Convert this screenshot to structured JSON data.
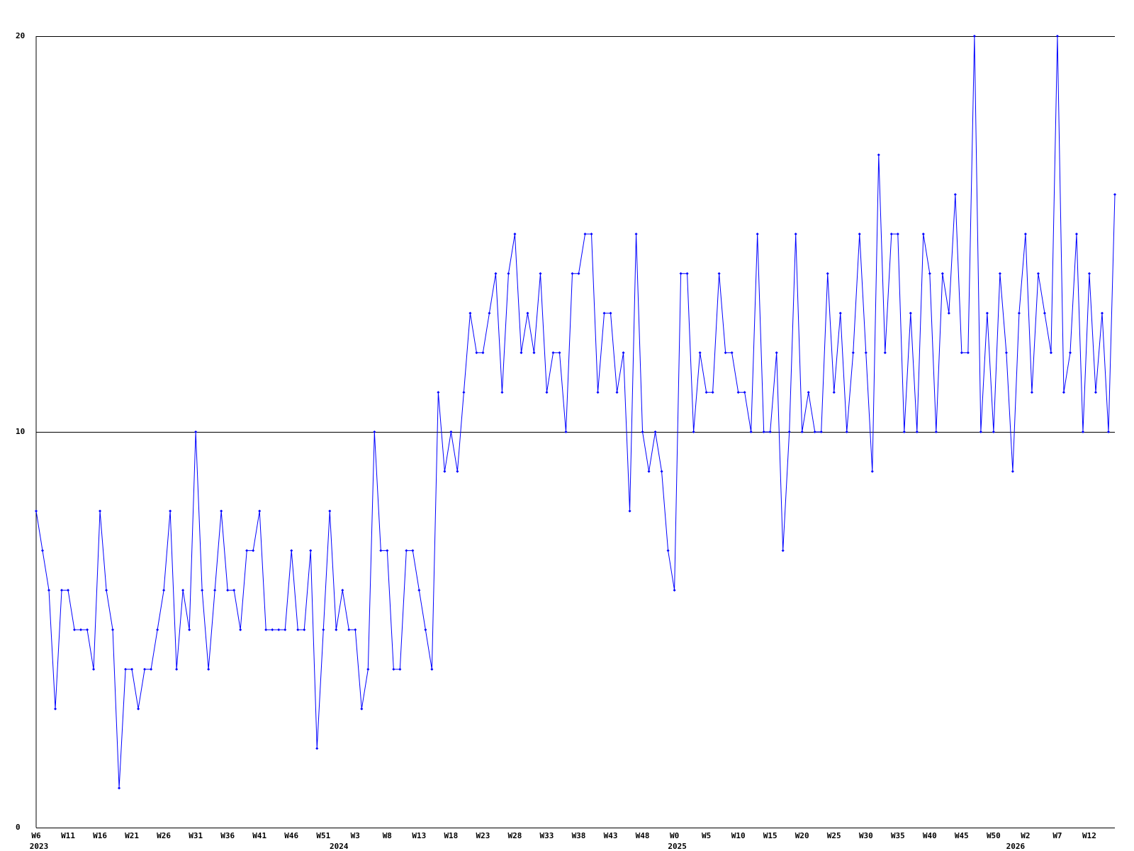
{
  "chart_data": {
    "type": "line",
    "categories": [
      "W6",
      null,
      null,
      null,
      null,
      "W11",
      null,
      null,
      null,
      null,
      "W16",
      null,
      null,
      null,
      null,
      "W21",
      null,
      null,
      null,
      null,
      "W26",
      null,
      null,
      null,
      null,
      "W31",
      null,
      null,
      null,
      null,
      "W36",
      null,
      null,
      null,
      null,
      "W41",
      null,
      null,
      null,
      null,
      "W46",
      null,
      null,
      null,
      null,
      "W51",
      null,
      null,
      null,
      null,
      "W3",
      null,
      null,
      null,
      null,
      "W8",
      null,
      null,
      null,
      null,
      "W13",
      null,
      null,
      null,
      null,
      "W18",
      null,
      null,
      null,
      null,
      "W23",
      null,
      null,
      null,
      null,
      "W28",
      null,
      null,
      null,
      null,
      "W33",
      null,
      null,
      null,
      null,
      "W38",
      null,
      null,
      null,
      null,
      "W43",
      null,
      null,
      null,
      null,
      "W48",
      null,
      null,
      null,
      null,
      "W0",
      null,
      null,
      null,
      null,
      "W5",
      null,
      null,
      null,
      null,
      "W10",
      null,
      null,
      null,
      null,
      "W15",
      null,
      null,
      null,
      null,
      "W20",
      null,
      null,
      null,
      null,
      "W25",
      null,
      null,
      null,
      null,
      "W30",
      null,
      null,
      null,
      null,
      "W35",
      null,
      null,
      null,
      null,
      "W40",
      null,
      null,
      null,
      null,
      "W45",
      null,
      null,
      null,
      null,
      "W50",
      null,
      null,
      null,
      null,
      "W2",
      null,
      null,
      null,
      null,
      "W7",
      null,
      null,
      null,
      null,
      "W12",
      null,
      null,
      null,
      null
    ],
    "years": [
      "2023",
      null,
      null,
      null,
      null,
      null,
      null,
      null,
      null,
      null,
      null,
      null,
      null,
      null,
      null,
      null,
      null,
      null,
      null,
      null,
      null,
      null,
      null,
      null,
      null,
      null,
      null,
      null,
      null,
      null,
      null,
      null,
      null,
      null,
      null,
      null,
      null,
      null,
      null,
      null,
      null,
      null,
      null,
      null,
      null,
      null,
      null,
      "2024",
      null,
      null,
      null,
      null,
      null,
      null,
      null,
      null,
      null,
      null,
      null,
      null,
      null,
      null,
      null,
      null,
      null,
      null,
      null,
      null,
      null,
      null,
      null,
      null,
      null,
      null,
      null,
      null,
      null,
      null,
      null,
      null,
      null,
      null,
      null,
      null,
      null,
      null,
      null,
      null,
      null,
      null,
      null,
      null,
      null,
      null,
      null,
      null,
      null,
      null,
      null,
      null,
      "2025",
      null,
      null,
      null,
      null,
      null,
      null,
      null,
      null,
      null,
      null,
      null,
      null,
      null,
      null,
      null,
      null,
      null,
      null,
      null,
      null,
      null,
      null,
      null,
      null,
      null,
      null,
      null,
      null,
      null,
      null,
      null,
      null,
      null,
      null,
      null,
      null,
      null,
      null,
      null,
      null,
      null,
      null,
      null,
      null,
      null,
      null,
      null,
      null,
      null,
      null,
      null,
      null,
      "2026",
      null,
      null,
      null,
      null,
      null,
      null,
      null,
      null,
      null,
      null,
      null,
      null,
      null,
      null,
      null,
      null
    ],
    "series": [
      {
        "color": "#0000ff",
        "values": [
          8,
          7,
          6,
          3,
          6,
          6,
          5,
          5,
          5,
          4,
          8,
          6,
          5,
          1,
          4,
          4,
          3,
          4,
          4,
          5,
          6,
          8,
          4,
          6,
          5,
          10,
          6,
          4,
          6,
          8,
          6,
          6,
          5,
          7,
          7,
          8,
          5,
          5,
          5,
          5,
          7,
          5,
          5,
          7,
          2,
          5,
          8,
          5,
          6,
          5,
          5,
          3,
          4,
          10,
          7,
          7,
          4,
          4,
          7,
          7,
          6,
          5,
          4,
          11,
          9,
          10,
          9,
          11,
          13,
          12,
          12,
          13,
          14,
          11,
          14,
          15,
          12,
          13,
          12,
          14,
          11,
          12,
          12,
          10,
          14,
          14,
          15,
          15,
          11,
          13,
          13,
          11,
          12,
          8,
          15,
          10,
          9,
          10,
          9,
          7,
          6,
          14,
          14,
          10,
          12,
          11,
          11,
          14,
          12,
          12,
          11,
          11,
          10,
          15,
          10,
          10,
          12,
          7,
          10,
          15,
          10,
          11,
          10,
          10,
          14,
          11,
          13,
          10,
          12,
          15,
          12,
          9,
          17,
          12,
          15,
          15,
          10,
          13,
          10,
          15,
          14,
          10,
          14,
          13,
          16,
          12,
          12,
          20,
          10,
          13,
          10,
          14,
          12,
          9,
          13,
          15,
          11,
          14,
          13,
          12,
          20,
          11,
          12,
          15,
          10,
          14,
          11,
          13,
          10,
          16
        ]
      }
    ],
    "ylim": [
      0,
      20
    ],
    "yticks": [
      0,
      10,
      20
    ],
    "grid": true
  }
}
